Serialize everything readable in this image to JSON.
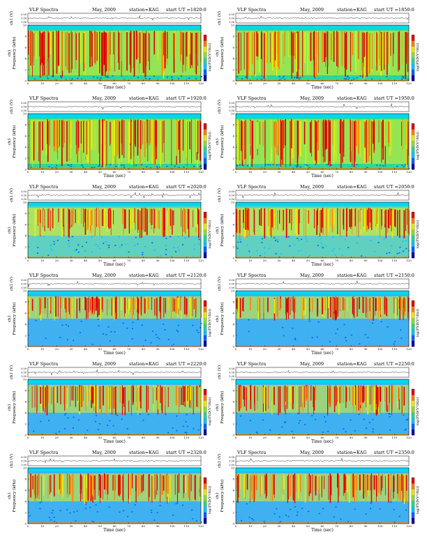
{
  "chart_data": {
    "type": "heatmap",
    "title_prefix": "VLF Spectra",
    "date_label": "May, 2009",
    "station_label": "station=KAG",
    "start_prefix": "start  UT =",
    "waveform_ylabel": "ch1 (V)",
    "waveform_ticks": [
      "0.00",
      "0.50",
      "1.00"
    ],
    "spectrogram_ylabel": "Frequency (kHz)",
    "channel_label": "ch1",
    "colorbar_label": "log(PSD(V²/Hz))",
    "xlabel": "Time  (sec)",
    "xlim": [
      0,
      120
    ],
    "ylim": [
      0,
      10
    ],
    "x_ticks": [
      "0",
      "10",
      "20",
      "30",
      "40",
      "50",
      "60",
      "70",
      "80",
      "90",
      "100",
      "110",
      "120"
    ],
    "y_ticks": [
      "0",
      "2",
      "4",
      "6",
      "8",
      "10"
    ],
    "colormap": [
      "#0000a0",
      "#0060ff",
      "#00c8ff",
      "#30d890",
      "#90e040",
      "#f0f000",
      "#ff8000",
      "#e00000"
    ],
    "panels": [
      {
        "start_time": "1820:0",
        "low_band_color": "#30d890",
        "active_band_kHz": [
          1,
          9
        ]
      },
      {
        "start_time": "1850:0",
        "low_band_color": "#30d890",
        "active_band_kHz": [
          1,
          9
        ]
      },
      {
        "start_time": "1920:0",
        "low_band_color": "#30d890",
        "active_band_kHz": [
          1,
          9
        ]
      },
      {
        "start_time": "1950:0",
        "low_band_color": "#30d890",
        "active_band_kHz": [
          1,
          9
        ]
      },
      {
        "start_time": "2020:0",
        "low_band_color": "#60d0c0",
        "active_band_kHz": [
          4,
          9
        ]
      },
      {
        "start_time": "2050:0",
        "low_band_color": "#60d0c0",
        "active_band_kHz": [
          4,
          9
        ]
      },
      {
        "start_time": "2120:0",
        "low_band_color": "#40b0f0",
        "active_band_kHz": [
          5,
          9
        ]
      },
      {
        "start_time": "2150:0",
        "low_band_color": "#40b0f0",
        "active_band_kHz": [
          5,
          9
        ]
      },
      {
        "start_time": "2220:0",
        "low_band_color": "#40b0f0",
        "active_band_kHz": [
          4,
          9
        ]
      },
      {
        "start_time": "2250:0",
        "low_band_color": "#40b0f0",
        "active_band_kHz": [
          4,
          9
        ]
      },
      {
        "start_time": "2320:0",
        "low_band_color": "#40b0f0",
        "active_band_kHz": [
          4,
          9
        ]
      },
      {
        "start_time": "2350:0",
        "low_band_color": "#40b0f0",
        "active_band_kHz": [
          4,
          9
        ]
      }
    ]
  }
}
